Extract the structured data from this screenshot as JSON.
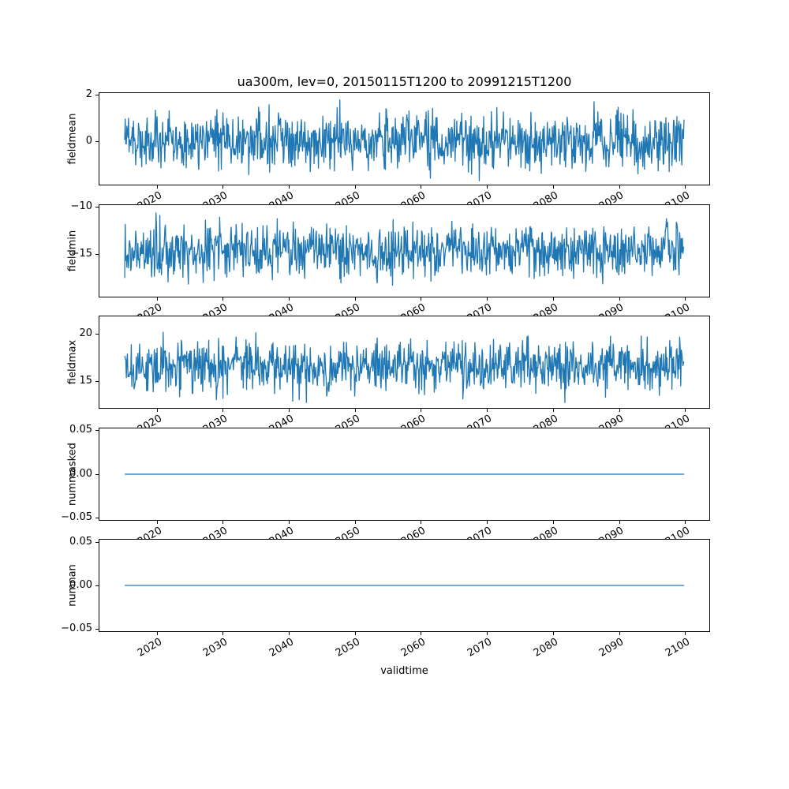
{
  "title": "ua300m, lev=0, 20150115T1200 to 20991215T1200",
  "xlabel": "validtime",
  "colors": {
    "line": "#1f77b4",
    "axis": "#000000",
    "text": "#000000",
    "background": "#ffffff"
  },
  "chart_data": {
    "type": "line",
    "title": "ua300m, lev=0, 20150115T1200 to 20991215T1200",
    "xlabel": "validtime",
    "legend": "none",
    "grid": false,
    "x": {
      "start": 2015.04,
      "end": 2099.96,
      "points": 1020,
      "xlim": [
        2011.2,
        2103.8
      ],
      "ticks": [
        2020,
        2030,
        2040,
        2050,
        2060,
        2070,
        2080,
        2090,
        2100
      ],
      "tick_labels": [
        "2020",
        "2030",
        "2040",
        "2050",
        "2060",
        "2070",
        "2080",
        "2090",
        "2100"
      ]
    },
    "subplots": [
      {
        "ylabel": "fieldmean",
        "ylim": [
          -1.9,
          2.1
        ],
        "yticks": [
          {
            "value": 2,
            "label": "2"
          },
          {
            "value": 0,
            "label": "0"
          }
        ],
        "series": {
          "kind": "noise",
          "mean": 0.0,
          "std": 0.62,
          "min": -1.75,
          "max": 1.95,
          "seed": 7
        }
      },
      {
        "ylabel": "fieldmin",
        "ylim": [
          -19.6,
          -9.7
        ],
        "yticks": [
          {
            "value": -10,
            "label": "−10"
          },
          {
            "value": -15,
            "label": "−15"
          }
        ],
        "series": {
          "kind": "noise",
          "mean": -14.6,
          "std": 1.45,
          "min": -19.2,
          "max": -10.05,
          "seed": 13
        }
      },
      {
        "ylabel": "fieldmax",
        "ylim": [
          12.1,
          21.9
        ],
        "yticks": [
          {
            "value": 20,
            "label": "20"
          },
          {
            "value": 15,
            "label": "15"
          }
        ],
        "series": {
          "kind": "noise",
          "mean": 16.5,
          "std": 1.35,
          "min": 12.5,
          "max": 21.6,
          "seed": 29
        }
      },
      {
        "ylabel": "nummasked",
        "ylim": [
          -0.0536,
          0.0536
        ],
        "yticks": [
          {
            "value": 0.05,
            "label": "0.05"
          },
          {
            "value": 0,
            "label": "0.00"
          },
          {
            "value": -0.05,
            "label": "−0.05"
          }
        ],
        "series": {
          "kind": "constant",
          "value": 0
        }
      },
      {
        "ylabel": "numnan",
        "ylim": [
          -0.0536,
          0.0536
        ],
        "yticks": [
          {
            "value": 0.05,
            "label": "0.05"
          },
          {
            "value": 0,
            "label": "0.00"
          },
          {
            "value": -0.05,
            "label": "−0.05"
          }
        ],
        "series": {
          "kind": "constant",
          "value": 0
        }
      }
    ]
  }
}
